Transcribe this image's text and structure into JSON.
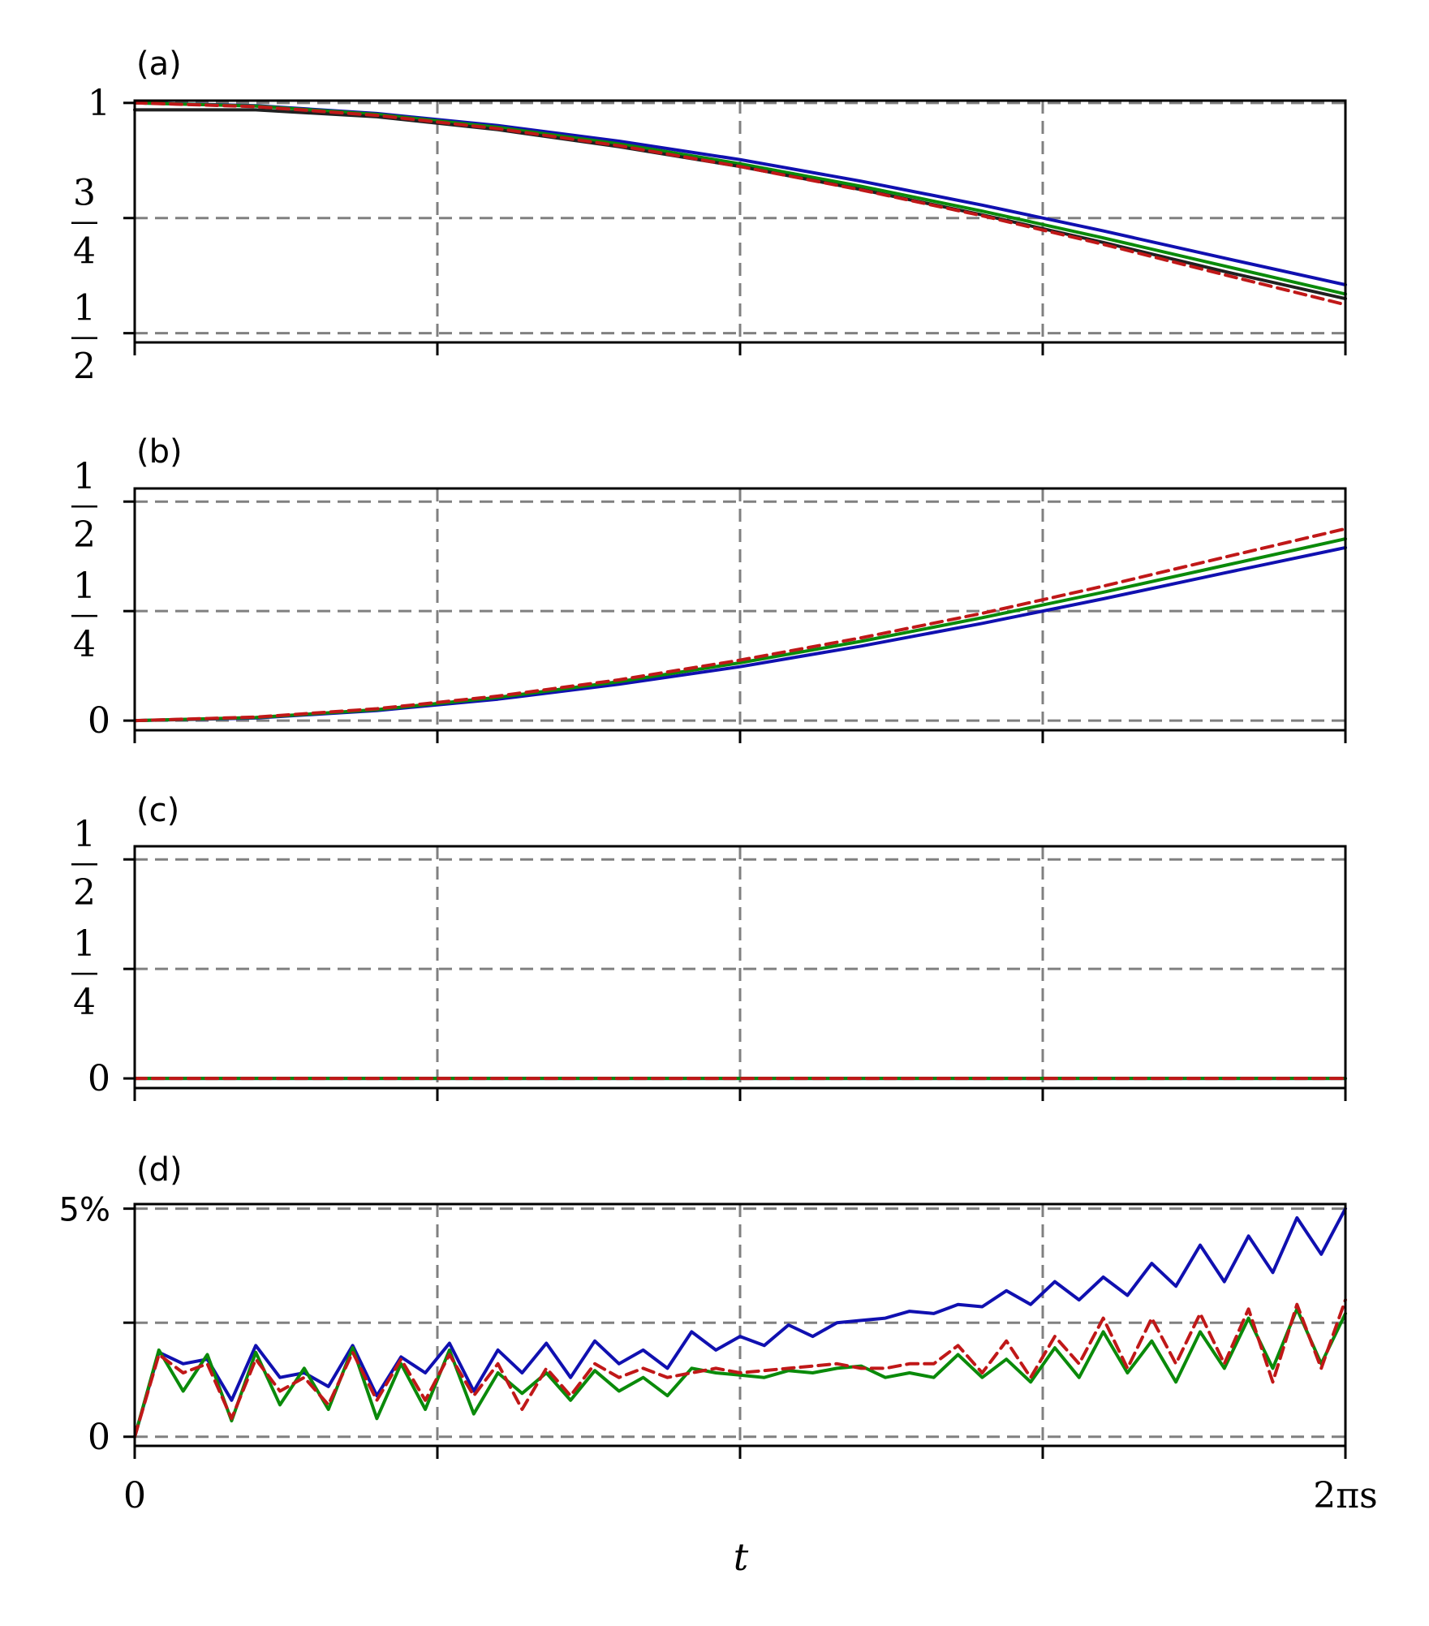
{
  "figure": {
    "xlabel": "t",
    "x_tick_labels": {
      "start": "0",
      "end": "2πs"
    }
  },
  "colors": {
    "grid": "#808080",
    "blue": "#1010b0",
    "green": "#0a8a0a",
    "red": "#c01818",
    "black": "#202020"
  },
  "chart_data": [
    {
      "panel": "(a)",
      "type": "line",
      "xlim": [
        0,
        1
      ],
      "ylim": [
        0.48,
        1.005
      ],
      "x_ticks": [
        0,
        0.25,
        0.5,
        0.75,
        1
      ],
      "y_ticks": [
        {
          "value": 1,
          "label": "1"
        },
        {
          "value": 0.75,
          "num": "3",
          "den": "4"
        },
        {
          "value": 0.5,
          "num": "1",
          "den": "2"
        }
      ],
      "grid": true,
      "series": [
        {
          "color": "blue",
          "style": "solid",
          "x": [
            0,
            0.1,
            0.2,
            0.3,
            0.4,
            0.5,
            0.6,
            0.7,
            0.8,
            0.9,
            1.0
          ],
          "y": [
            1.0,
            0.994,
            0.977,
            0.951,
            0.917,
            0.877,
            0.83,
            0.778,
            0.722,
            0.663,
            0.605
          ]
        },
        {
          "color": "green",
          "style": "solid",
          "x": [
            0,
            0.1,
            0.2,
            0.3,
            0.4,
            0.5,
            0.6,
            0.7,
            0.8,
            0.9,
            1.0
          ],
          "y": [
            1.0,
            0.993,
            0.975,
            0.947,
            0.911,
            0.868,
            0.819,
            0.765,
            0.707,
            0.646,
            0.585
          ]
        },
        {
          "color": "black",
          "style": "solid",
          "x": [
            0,
            0.1,
            0.2,
            0.3,
            0.4,
            0.5,
            0.6,
            0.7,
            0.8,
            0.9,
            1.0
          ],
          "y": [
            0.985,
            0.985,
            0.97,
            0.942,
            0.905,
            0.862,
            0.812,
            0.757,
            0.697,
            0.634,
            0.575
          ]
        },
        {
          "color": "red",
          "style": "dashed",
          "x": [
            0,
            0.1,
            0.2,
            0.3,
            0.4,
            0.5,
            0.6,
            0.7,
            0.8,
            0.9,
            1.0
          ],
          "y": [
            1.0,
            0.992,
            0.973,
            0.944,
            0.907,
            0.862,
            0.811,
            0.755,
            0.693,
            0.627,
            0.562
          ]
        }
      ]
    },
    {
      "panel": "(b)",
      "type": "line",
      "xlim": [
        0,
        1
      ],
      "ylim": [
        -0.022,
        0.53
      ],
      "x_ticks": [
        0,
        0.25,
        0.5,
        0.75,
        1
      ],
      "y_ticks": [
        {
          "value": 0.5,
          "num": "1",
          "den": "2"
        },
        {
          "value": 0.25,
          "num": "1",
          "den": "4"
        },
        {
          "value": 0,
          "label": "0"
        }
      ],
      "grid": true,
      "series": [
        {
          "color": "blue",
          "style": "solid",
          "x": [
            0,
            0.1,
            0.2,
            0.3,
            0.4,
            0.5,
            0.6,
            0.7,
            0.8,
            0.9,
            1.0
          ],
          "y": [
            0.0,
            0.006,
            0.023,
            0.049,
            0.083,
            0.123,
            0.17,
            0.222,
            0.278,
            0.337,
            0.395
          ]
        },
        {
          "color": "green",
          "style": "solid",
          "x": [
            0,
            0.1,
            0.2,
            0.3,
            0.4,
            0.5,
            0.6,
            0.7,
            0.8,
            0.9,
            1.0
          ],
          "y": [
            0.0,
            0.007,
            0.025,
            0.053,
            0.089,
            0.132,
            0.181,
            0.235,
            0.293,
            0.354,
            0.415
          ]
        },
        {
          "color": "red",
          "style": "dashed",
          "x": [
            0,
            0.1,
            0.2,
            0.3,
            0.4,
            0.5,
            0.6,
            0.7,
            0.8,
            0.9,
            1.0
          ],
          "y": [
            0.0,
            0.008,
            0.027,
            0.056,
            0.093,
            0.138,
            0.189,
            0.245,
            0.307,
            0.373,
            0.438
          ]
        }
      ]
    },
    {
      "panel": "(c)",
      "type": "line",
      "xlim": [
        0,
        1
      ],
      "ylim": [
        -0.022,
        0.53
      ],
      "x_ticks": [
        0,
        0.25,
        0.5,
        0.75,
        1
      ],
      "y_ticks": [
        {
          "value": 0.5,
          "num": "1",
          "den": "2"
        },
        {
          "value": 0.25,
          "num": "1",
          "den": "4"
        },
        {
          "value": 0,
          "label": "0"
        }
      ],
      "grid": true,
      "series": [
        {
          "color": "blue",
          "style": "solid",
          "x": [
            0,
            1
          ],
          "y": [
            0,
            0
          ]
        },
        {
          "color": "green",
          "style": "solid",
          "x": [
            0,
            1
          ],
          "y": [
            0,
            0
          ]
        },
        {
          "color": "red",
          "style": "dashed",
          "x": [
            0,
            1
          ],
          "y": [
            0,
            0
          ]
        }
      ]
    },
    {
      "panel": "(d)",
      "type": "line",
      "xlim": [
        0,
        1
      ],
      "ylim": [
        -0.2,
        5.1
      ],
      "x_ticks": [
        0,
        0.25,
        0.5,
        0.75,
        1
      ],
      "y_ticks": [
        {
          "value": 5,
          "label": "5%"
        },
        {
          "value": 2.5,
          "label": ""
        },
        {
          "value": 0,
          "label": "0"
        }
      ],
      "grid": true,
      "series": [
        {
          "color": "blue",
          "style": "solid",
          "x": [
            0,
            0.02,
            0.04,
            0.06,
            0.08,
            0.1,
            0.12,
            0.14,
            0.16,
            0.18,
            0.2,
            0.22,
            0.24,
            0.26,
            0.28,
            0.3,
            0.32,
            0.34,
            0.36,
            0.38,
            0.4,
            0.42,
            0.44,
            0.46,
            0.48,
            0.5,
            0.52,
            0.54,
            0.56,
            0.58,
            0.6,
            0.62,
            0.64,
            0.66,
            0.68,
            0.7,
            0.72,
            0.74,
            0.76,
            0.78,
            0.8,
            0.82,
            0.84,
            0.86,
            0.88,
            0.9,
            0.92,
            0.94,
            0.96,
            0.98,
            1.0
          ],
          "y": [
            0,
            1.85,
            1.6,
            1.7,
            0.8,
            2.0,
            1.3,
            1.4,
            1.1,
            2.0,
            0.9,
            1.75,
            1.4,
            2.05,
            1.0,
            1.9,
            1.4,
            2.05,
            1.3,
            2.1,
            1.6,
            1.9,
            1.5,
            2.3,
            1.9,
            2.2,
            2.0,
            2.45,
            2.2,
            2.5,
            2.55,
            2.6,
            2.75,
            2.7,
            2.9,
            2.85,
            3.2,
            2.9,
            3.4,
            3.0,
            3.5,
            3.1,
            3.8,
            3.3,
            4.2,
            3.4,
            4.4,
            3.6,
            4.8,
            4.0,
            5.0
          ]
        },
        {
          "color": "green",
          "style": "solid",
          "x": [
            0,
            0.02,
            0.04,
            0.06,
            0.08,
            0.1,
            0.12,
            0.14,
            0.16,
            0.18,
            0.2,
            0.22,
            0.24,
            0.26,
            0.28,
            0.3,
            0.32,
            0.34,
            0.36,
            0.38,
            0.4,
            0.42,
            0.44,
            0.46,
            0.48,
            0.5,
            0.52,
            0.54,
            0.56,
            0.58,
            0.6,
            0.62,
            0.64,
            0.66,
            0.68,
            0.7,
            0.72,
            0.74,
            0.76,
            0.78,
            0.8,
            0.82,
            0.84,
            0.86,
            0.88,
            0.9,
            0.92,
            0.94,
            0.96,
            0.98,
            1.0
          ],
          "y": [
            0,
            1.9,
            1.0,
            1.8,
            0.35,
            1.85,
            0.7,
            1.5,
            0.6,
            1.95,
            0.4,
            1.6,
            0.6,
            1.9,
            0.5,
            1.4,
            0.95,
            1.4,
            0.8,
            1.45,
            1.0,
            1.3,
            0.9,
            1.5,
            1.4,
            1.35,
            1.3,
            1.45,
            1.4,
            1.5,
            1.55,
            1.3,
            1.4,
            1.3,
            1.8,
            1.3,
            1.7,
            1.2,
            1.95,
            1.3,
            2.3,
            1.4,
            2.1,
            1.2,
            2.3,
            1.5,
            2.6,
            1.5,
            2.8,
            1.6,
            2.7
          ]
        },
        {
          "color": "red",
          "style": "dashed",
          "x": [
            0,
            0.02,
            0.04,
            0.06,
            0.08,
            0.1,
            0.12,
            0.14,
            0.16,
            0.18,
            0.2,
            0.22,
            0.24,
            0.26,
            0.28,
            0.3,
            0.32,
            0.34,
            0.36,
            0.38,
            0.4,
            0.42,
            0.44,
            0.46,
            0.48,
            0.5,
            0.52,
            0.54,
            0.56,
            0.58,
            0.6,
            0.62,
            0.64,
            0.66,
            0.68,
            0.7,
            0.72,
            0.74,
            0.76,
            0.78,
            0.8,
            0.82,
            0.84,
            0.86,
            0.88,
            0.9,
            0.92,
            0.94,
            0.96,
            0.98,
            1.0
          ],
          "y": [
            0,
            1.8,
            1.4,
            1.6,
            0.4,
            1.7,
            1.0,
            1.3,
            0.7,
            1.85,
            0.8,
            1.7,
            0.8,
            1.8,
            0.9,
            1.6,
            0.6,
            1.5,
            0.9,
            1.6,
            1.3,
            1.5,
            1.3,
            1.4,
            1.5,
            1.4,
            1.45,
            1.5,
            1.55,
            1.6,
            1.5,
            1.5,
            1.6,
            1.6,
            2.0,
            1.4,
            2.1,
            1.3,
            2.2,
            1.6,
            2.6,
            1.5,
            2.6,
            1.6,
            2.7,
            1.6,
            2.8,
            1.2,
            2.9,
            1.5,
            3.0
          ]
        }
      ]
    }
  ]
}
